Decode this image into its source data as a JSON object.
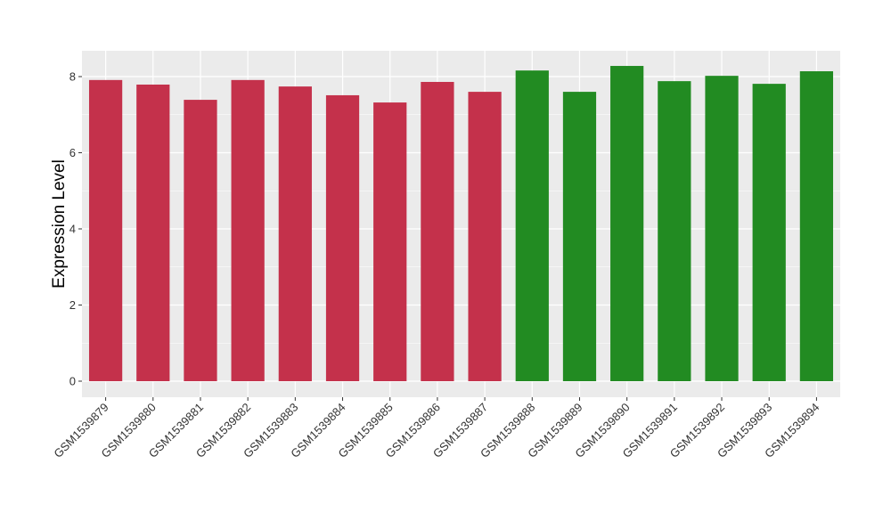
{
  "chart_data": {
    "type": "bar",
    "title": "",
    "xlabel": "",
    "ylabel": "Expression Level",
    "ylim": [
      -0.4,
      8.7
    ],
    "yticks": [
      0,
      2,
      4,
      6,
      8
    ],
    "grid": true,
    "legend": "none",
    "categories": [
      "GSM1539879",
      "GSM1539880",
      "GSM1539881",
      "GSM1539882",
      "GSM1539883",
      "GSM1539884",
      "GSM1539885",
      "GSM1539886",
      "GSM1539887",
      "GSM1539888",
      "GSM1539889",
      "GSM1539890",
      "GSM1539891",
      "GSM1539892",
      "GSM1539893",
      "GSM1539894"
    ],
    "values": [
      7.91,
      7.79,
      7.39,
      7.91,
      7.74,
      7.51,
      7.32,
      7.86,
      7.6,
      8.16,
      7.6,
      8.28,
      7.88,
      8.02,
      7.81,
      8.14
    ],
    "bar_colors": [
      "#C4314B",
      "#C4314B",
      "#C4314B",
      "#C4314B",
      "#C4314B",
      "#C4314B",
      "#C4314B",
      "#C4314B",
      "#C4314B",
      "#228B22",
      "#228B22",
      "#228B22",
      "#228B22",
      "#228B22",
      "#228B22",
      "#228B22"
    ],
    "panel_background": "#EBEBEB",
    "grid_color": "#FFFFFF"
  }
}
